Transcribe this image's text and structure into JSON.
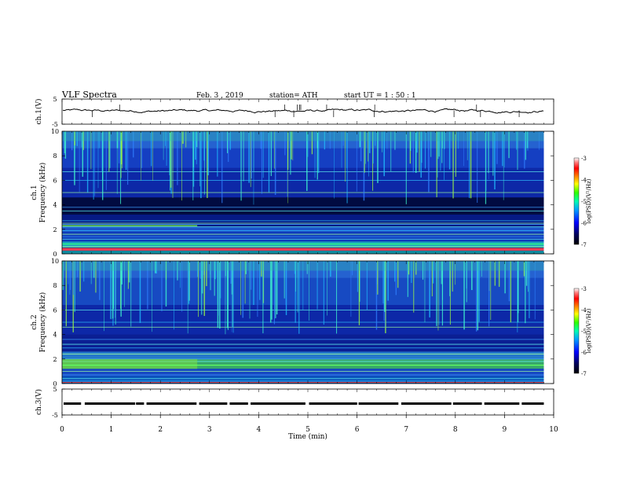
{
  "header": {
    "title": "VLF  Spectra",
    "date": "Feb. 3  , 2019",
    "station": "station= ATH",
    "start": "start  UT  =   1  : 50 : 1"
  },
  "chart_data": [
    {
      "type": "line",
      "name": "ch1-waveform",
      "ylabel": "ch.1(V)",
      "ylim": [
        -5,
        5
      ],
      "yticks": [
        "5",
        "-5"
      ],
      "xlim": [
        0,
        10
      ]
    },
    {
      "type": "heatmap",
      "name": "ch1-spectrogram",
      "ylabel": "ch.1\nFrequency (kHz)",
      "ylim": [
        0,
        10
      ],
      "yticks": [
        "0",
        "2",
        "4",
        "6",
        "8",
        "10"
      ],
      "xlim": [
        0,
        10
      ],
      "data_end_min": 9.8,
      "colorbar": {
        "label": "log(PSD)(V²/Hz)",
        "range": [
          -7,
          -3
        ],
        "ticks": [
          "-3",
          "-4",
          "-5",
          "-6",
          "-7"
        ]
      }
    },
    {
      "type": "heatmap",
      "name": "ch2-spectrogram",
      "ylabel": "ch.2\nFrequency (kHz)",
      "ylim": [
        0,
        10
      ],
      "yticks": [
        "0",
        "2",
        "4",
        "6",
        "8",
        "10"
      ],
      "xlim": [
        0,
        10
      ],
      "data_end_min": 9.8,
      "colorbar": {
        "label": "log(PSD)(V²/Hz)",
        "range": [
          -7,
          -3
        ],
        "ticks": [
          "-3",
          "-4",
          "-5",
          "-6",
          "-7"
        ]
      }
    },
    {
      "type": "line",
      "name": "ch3-signal",
      "ylabel": "ch.3(V)",
      "ylim": [
        -5,
        5
      ],
      "yticks": [
        "5",
        "-5"
      ],
      "xlim": [
        0,
        10
      ],
      "xlabel": "Time  (min)",
      "xticks": [
        "0",
        "1",
        "2",
        "3",
        "4",
        "5",
        "6",
        "7",
        "8",
        "9",
        "10"
      ]
    }
  ]
}
